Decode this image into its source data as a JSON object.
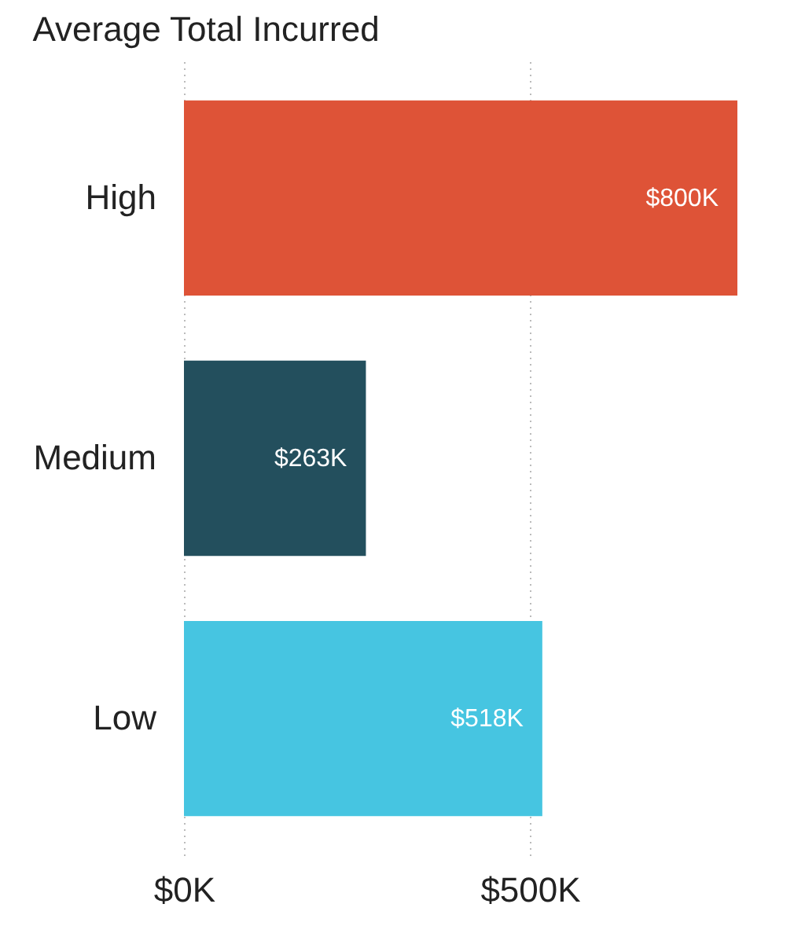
{
  "chart_data": {
    "type": "bar",
    "orientation": "horizontal",
    "title": "Average Total Incurred",
    "categories": [
      "High",
      "Medium",
      "Low"
    ],
    "values": [
      800,
      263,
      518
    ],
    "colors": [
      "#de5337",
      "#234f5d",
      "#46c5e1"
    ],
    "data_labels": true,
    "value_labels": [
      "$800K",
      "$263K",
      "$518K"
    ],
    "xlim": [
      0,
      800
    ],
    "xticks": [
      {
        "value": 0,
        "label": "$0K"
      },
      {
        "value": 500,
        "label": "$500K"
      }
    ],
    "grid": "x"
  }
}
